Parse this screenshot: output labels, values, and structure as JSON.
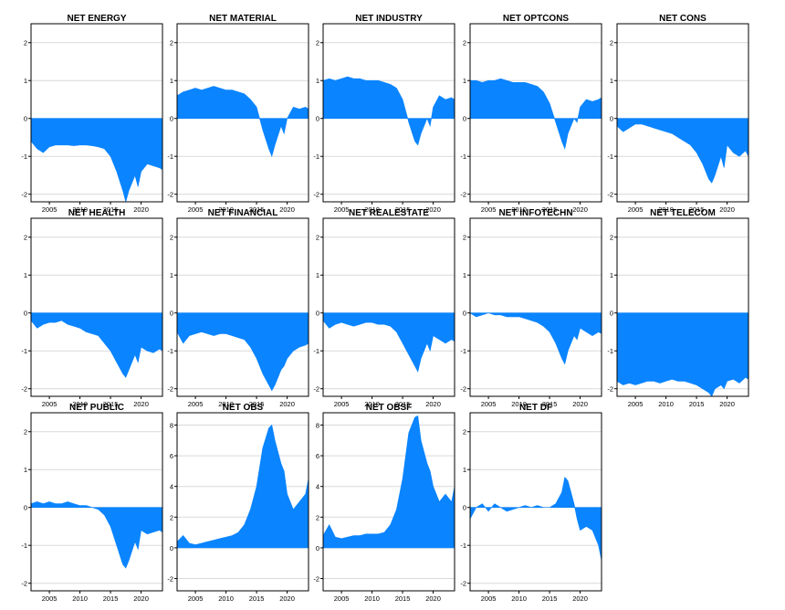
{
  "style": {
    "fill_color": "#0a84ff",
    "grid_color": "#d9d9d9",
    "frame_color": "#000000"
  },
  "chart_data": [
    {
      "type": "area",
      "title": "NET ENERGY",
      "x": [
        2002,
        2003,
        2004,
        2005,
        2006,
        2007,
        2008,
        2009,
        2010,
        2011,
        2012,
        2013,
        2014,
        2015,
        2016,
        2017,
        2017.5,
        2018,
        2019,
        2019.5,
        2020,
        2021,
        2022,
        2023,
        2023.5
      ],
      "y": [
        -0.6,
        -0.8,
        -0.9,
        -0.75,
        -0.7,
        -0.7,
        -0.7,
        -0.72,
        -0.7,
        -0.7,
        -0.72,
        -0.75,
        -0.8,
        -1.0,
        -1.4,
        -1.9,
        -2.2,
        -1.9,
        -1.5,
        -1.8,
        -1.4,
        -1.2,
        -1.25,
        -1.3,
        -1.35
      ],
      "xticks": [
        "2005",
        "2010",
        "2015",
        "2020"
      ],
      "xtick_values": [
        2005,
        2010,
        2015,
        2020
      ],
      "yticks": [
        "-2",
        "-1",
        "0",
        "1",
        "2"
      ],
      "ytick_values": [
        -2,
        -1,
        0,
        1,
        2
      ],
      "xlim": [
        2002,
        2023.5
      ],
      "ylim": [
        -2.2,
        2.5
      ],
      "grid": true
    },
    {
      "type": "area",
      "title": "NET MATERIAL",
      "x": [
        2002,
        2003,
        2004,
        2005,
        2006,
        2007,
        2008,
        2009,
        2010,
        2011,
        2012,
        2013,
        2014,
        2015,
        2016,
        2017,
        2017.5,
        2018,
        2019,
        2019.5,
        2020,
        2021,
        2022,
        2023,
        2023.5
      ],
      "y": [
        0.6,
        0.7,
        0.75,
        0.8,
        0.75,
        0.8,
        0.85,
        0.8,
        0.75,
        0.75,
        0.7,
        0.65,
        0.5,
        0.3,
        -0.3,
        -0.8,
        -1.0,
        -0.7,
        -0.2,
        -0.4,
        0.0,
        0.3,
        0.25,
        0.3,
        0.25
      ],
      "xticks": [
        "2005",
        "2010",
        "2015",
        "2020"
      ],
      "xtick_values": [
        2005,
        2010,
        2015,
        2020
      ],
      "yticks": [
        "-2",
        "-1",
        "0",
        "1",
        "2"
      ],
      "ytick_values": [
        -2,
        -1,
        0,
        1,
        2
      ],
      "xlim": [
        2002,
        2023.5
      ],
      "ylim": [
        -2.2,
        2.5
      ],
      "grid": true
    },
    {
      "type": "area",
      "title": "NET INDUSTRY",
      "x": [
        2002,
        2003,
        2004,
        2005,
        2006,
        2007,
        2008,
        2009,
        2010,
        2011,
        2012,
        2013,
        2014,
        2015,
        2016,
        2017,
        2017.5,
        2018,
        2019,
        2019.5,
        2020,
        2021,
        2022,
        2023,
        2023.5
      ],
      "y": [
        1.0,
        1.05,
        1.0,
        1.05,
        1.1,
        1.05,
        1.05,
        1.0,
        1.0,
        1.0,
        0.95,
        0.9,
        0.8,
        0.5,
        -0.1,
        -0.6,
        -0.7,
        -0.4,
        0.0,
        -0.2,
        0.3,
        0.6,
        0.5,
        0.55,
        0.5
      ],
      "xticks": [
        "2005",
        "2010",
        "2015",
        "2020"
      ],
      "xtick_values": [
        2005,
        2010,
        2015,
        2020
      ],
      "yticks": [
        "-2",
        "-1",
        "0",
        "1",
        "2"
      ],
      "ytick_values": [
        -2,
        -1,
        0,
        1,
        2
      ],
      "xlim": [
        2002,
        2023.5
      ],
      "ylim": [
        -2.2,
        2.5
      ],
      "grid": true
    },
    {
      "type": "area",
      "title": "NET OPTCONS",
      "x": [
        2002,
        2003,
        2004,
        2005,
        2006,
        2007,
        2008,
        2009,
        2010,
        2011,
        2012,
        2013,
        2014,
        2015,
        2016,
        2017,
        2017.5,
        2018,
        2019,
        2019.5,
        2020,
        2021,
        2022,
        2023,
        2023.5
      ],
      "y": [
        1.0,
        1.0,
        0.95,
        1.0,
        1.0,
        1.05,
        1.0,
        0.95,
        0.95,
        0.95,
        0.9,
        0.85,
        0.7,
        0.4,
        -0.1,
        -0.6,
        -0.8,
        -0.4,
        0.0,
        -0.1,
        0.3,
        0.5,
        0.45,
        0.5,
        0.55
      ],
      "xticks": [
        "2005",
        "2010",
        "2015",
        "2020"
      ],
      "xtick_values": [
        2005,
        2010,
        2015,
        2020
      ],
      "yticks": [
        "-2",
        "-1",
        "0",
        "1",
        "2"
      ],
      "ytick_values": [
        -2,
        -1,
        0,
        1,
        2
      ],
      "xlim": [
        2002,
        2023.5
      ],
      "ylim": [
        -2.2,
        2.5
      ],
      "grid": true
    },
    {
      "type": "area",
      "title": "NET CONS",
      "x": [
        2002,
        2003,
        2004,
        2005,
        2006,
        2007,
        2008,
        2009,
        2010,
        2011,
        2012,
        2013,
        2014,
        2015,
        2016,
        2017,
        2017.5,
        2018,
        2019,
        2019.5,
        2020,
        2021,
        2022,
        2023,
        2023.5
      ],
      "y": [
        -0.2,
        -0.35,
        -0.25,
        -0.15,
        -0.15,
        -0.2,
        -0.25,
        -0.3,
        -0.35,
        -0.4,
        -0.5,
        -0.6,
        -0.7,
        -0.9,
        -1.2,
        -1.6,
        -1.7,
        -1.5,
        -1.0,
        -1.3,
        -0.7,
        -0.9,
        -1.0,
        -0.85,
        -1.0
      ],
      "xticks": [
        "2005",
        "2010",
        "2015",
        "2020"
      ],
      "xtick_values": [
        2005,
        2010,
        2015,
        2020
      ],
      "yticks": [
        "-2",
        "-1",
        "0",
        "1",
        "2"
      ],
      "ytick_values": [
        -2,
        -1,
        0,
        1,
        2
      ],
      "xlim": [
        2002,
        2023.5
      ],
      "ylim": [
        -2.2,
        2.5
      ],
      "grid": true
    },
    {
      "type": "area",
      "title": "NET HEALTH",
      "x": [
        2002,
        2003,
        2004,
        2005,
        2006,
        2007,
        2008,
        2009,
        2010,
        2011,
        2012,
        2013,
        2014,
        2015,
        2016,
        2017,
        2017.5,
        2018,
        2019,
        2019.5,
        2020,
        2021,
        2022,
        2023,
        2023.5
      ],
      "y": [
        -0.2,
        -0.4,
        -0.3,
        -0.25,
        -0.25,
        -0.2,
        -0.3,
        -0.35,
        -0.4,
        -0.5,
        -0.55,
        -0.6,
        -0.8,
        -1.0,
        -1.3,
        -1.6,
        -1.7,
        -1.5,
        -1.1,
        -1.3,
        -0.9,
        -1.0,
        -1.05,
        -0.95,
        -1.0
      ],
      "xticks": [
        "2005",
        "2010",
        "2015",
        "2020"
      ],
      "xtick_values": [
        2005,
        2010,
        2015,
        2020
      ],
      "yticks": [
        "-2",
        "-1",
        "0",
        "1",
        "2"
      ],
      "ytick_values": [
        -2,
        -1,
        0,
        1,
        2
      ],
      "xlim": [
        2002,
        2023.5
      ],
      "ylim": [
        -2.2,
        2.5
      ],
      "grid": true
    },
    {
      "type": "area",
      "title": "NET FINANCIAL",
      "x": [
        2002,
        2003,
        2004,
        2005,
        2006,
        2007,
        2008,
        2009,
        2010,
        2011,
        2012,
        2013,
        2014,
        2015,
        2016,
        2017,
        2017.5,
        2018,
        2019,
        2019.5,
        2020,
        2021,
        2022,
        2023,
        2023.5
      ],
      "y": [
        -0.5,
        -0.8,
        -0.6,
        -0.55,
        -0.5,
        -0.55,
        -0.6,
        -0.55,
        -0.55,
        -0.6,
        -0.65,
        -0.7,
        -0.9,
        -1.2,
        -1.6,
        -1.9,
        -2.05,
        -1.9,
        -1.5,
        -1.4,
        -1.2,
        -1.0,
        -0.9,
        -0.85,
        -0.8
      ],
      "xticks": [
        "2005",
        "2010",
        "2015",
        "2020"
      ],
      "xtick_values": [
        2005,
        2010,
        2015,
        2020
      ],
      "yticks": [
        "-2",
        "-1",
        "0",
        "1",
        "2"
      ],
      "ytick_values": [
        -2,
        -1,
        0,
        1,
        2
      ],
      "xlim": [
        2002,
        2023.5
      ],
      "ylim": [
        -2.2,
        2.5
      ],
      "grid": true
    },
    {
      "type": "area",
      "title": "NET REALESTATE",
      "x": [
        2002,
        2003,
        2004,
        2005,
        2006,
        2007,
        2008,
        2009,
        2010,
        2011,
        2012,
        2013,
        2014,
        2015,
        2016,
        2017,
        2017.5,
        2018,
        2019,
        2019.5,
        2020,
        2021,
        2022,
        2023,
        2023.5
      ],
      "y": [
        -0.2,
        -0.4,
        -0.3,
        -0.25,
        -0.3,
        -0.35,
        -0.3,
        -0.25,
        -0.25,
        -0.3,
        -0.3,
        -0.35,
        -0.5,
        -0.8,
        -1.1,
        -1.4,
        -1.55,
        -1.2,
        -0.8,
        -1.0,
        -0.6,
        -0.7,
        -0.8,
        -0.7,
        -0.75
      ],
      "xticks": [
        "2005",
        "2010",
        "2015",
        "2020"
      ],
      "xtick_values": [
        2005,
        2010,
        2015,
        2020
      ],
      "yticks": [
        "-2",
        "-1",
        "0",
        "1",
        "2"
      ],
      "ytick_values": [
        -2,
        -1,
        0,
        1,
        2
      ],
      "xlim": [
        2002,
        2023.5
      ],
      "ylim": [
        -2.2,
        2.5
      ],
      "grid": true
    },
    {
      "type": "area",
      "title": "NET INFOTECHN",
      "x": [
        2002,
        2003,
        2004,
        2005,
        2006,
        2007,
        2008,
        2009,
        2010,
        2011,
        2012,
        2013,
        2014,
        2015,
        2016,
        2017,
        2017.5,
        2018,
        2019,
        2019.5,
        2020,
        2021,
        2022,
        2023,
        2023.5
      ],
      "y": [
        0.0,
        -0.1,
        -0.05,
        0.0,
        -0.05,
        -0.05,
        -0.1,
        -0.1,
        -0.1,
        -0.15,
        -0.2,
        -0.25,
        -0.35,
        -0.5,
        -0.8,
        -1.2,
        -1.35,
        -1.0,
        -0.6,
        -0.7,
        -0.4,
        -0.5,
        -0.6,
        -0.5,
        -0.55
      ],
      "xticks": [
        "2005",
        "2010",
        "2015",
        "2020"
      ],
      "xtick_values": [
        2005,
        2010,
        2015,
        2020
      ],
      "yticks": [
        "-2",
        "-1",
        "0",
        "1",
        "2"
      ],
      "ytick_values": [
        -2,
        -1,
        0,
        1,
        2
      ],
      "xlim": [
        2002,
        2023.5
      ],
      "ylim": [
        -2.2,
        2.5
      ],
      "grid": true
    },
    {
      "type": "area",
      "title": "NET TELECOM",
      "x": [
        2002,
        2003,
        2004,
        2005,
        2006,
        2007,
        2008,
        2009,
        2010,
        2011,
        2012,
        2013,
        2014,
        2015,
        2016,
        2017,
        2017.5,
        2018,
        2019,
        2019.5,
        2020,
        2021,
        2022,
        2023,
        2023.5
      ],
      "y": [
        -1.8,
        -1.9,
        -1.85,
        -1.9,
        -1.85,
        -1.8,
        -1.8,
        -1.85,
        -1.8,
        -1.75,
        -1.8,
        -1.8,
        -1.85,
        -1.9,
        -2.0,
        -2.1,
        -2.2,
        -2.0,
        -1.9,
        -2.0,
        -1.8,
        -1.75,
        -1.85,
        -1.7,
        -1.75
      ],
      "xticks": [
        "2005",
        "2010",
        "2015",
        "2020"
      ],
      "xtick_values": [
        2005,
        2010,
        2015,
        2020
      ],
      "yticks": [
        "-2",
        "-1",
        "0",
        "1",
        "2"
      ],
      "ytick_values": [
        -2,
        -1,
        0,
        1,
        2
      ],
      "xlim": [
        2002,
        2023.5
      ],
      "ylim": [
        -2.2,
        2.5
      ],
      "grid": true
    },
    {
      "type": "area",
      "title": "NET PUBLIC",
      "x": [
        2002,
        2003,
        2004,
        2005,
        2006,
        2007,
        2008,
        2009,
        2010,
        2011,
        2012,
        2013,
        2014,
        2015,
        2016,
        2017,
        2017.5,
        2018,
        2019,
        2019.5,
        2020,
        2021,
        2022,
        2023,
        2023.5
      ],
      "y": [
        0.1,
        0.15,
        0.1,
        0.15,
        0.1,
        0.1,
        0.15,
        0.1,
        0.05,
        0.05,
        0.0,
        -0.05,
        -0.2,
        -0.5,
        -1.0,
        -1.5,
        -1.6,
        -1.4,
        -0.9,
        -1.1,
        -0.6,
        -0.7,
        -0.65,
        -0.6,
        -0.65
      ],
      "xticks": [
        "2005",
        "2010",
        "2015",
        "2020"
      ],
      "xtick_values": [
        2005,
        2010,
        2015,
        2020
      ],
      "yticks": [
        "-2",
        "-1",
        "0",
        "1",
        "2"
      ],
      "ytick_values": [
        -2,
        -1,
        0,
        1,
        2
      ],
      "xlim": [
        2002,
        2023.5
      ],
      "ylim": [
        -2.2,
        2.5
      ],
      "grid": true
    },
    {
      "type": "area",
      "title": "NET OBS",
      "x": [
        2002,
        2003,
        2004,
        2005,
        2006,
        2007,
        2008,
        2009,
        2010,
        2011,
        2012,
        2013,
        2014,
        2015,
        2016,
        2017,
        2017.5,
        2018,
        2019,
        2019.5,
        2020,
        2021,
        2022,
        2023,
        2023.5
      ],
      "y": [
        0.4,
        0.8,
        0.3,
        0.2,
        0.3,
        0.4,
        0.5,
        0.6,
        0.7,
        0.8,
        1.0,
        1.5,
        2.5,
        4.0,
        6.5,
        7.8,
        8.0,
        7.0,
        5.5,
        5.0,
        3.5,
        2.5,
        3.0,
        3.5,
        4.5
      ],
      "xticks": [
        "2005",
        "2010",
        "2015",
        "2020"
      ],
      "xtick_values": [
        2005,
        2010,
        2015,
        2020
      ],
      "yticks": [
        "-2",
        "0",
        "2",
        "4",
        "6",
        "8"
      ],
      "ytick_values": [
        -2,
        0,
        2,
        4,
        6,
        8
      ],
      "xlim": [
        2002,
        2023.5
      ],
      "ylim": [
        -2.8,
        8.8
      ],
      "grid": true
    },
    {
      "type": "area",
      "title": "NET OBSF",
      "x": [
        2002,
        2003,
        2004,
        2005,
        2006,
        2007,
        2008,
        2009,
        2010,
        2011,
        2012,
        2013,
        2014,
        2015,
        2016,
        2017,
        2017.5,
        2018,
        2019,
        2019.5,
        2020,
        2021,
        2022,
        2023,
        2023.5
      ],
      "y": [
        0.8,
        1.5,
        0.7,
        0.6,
        0.7,
        0.8,
        0.8,
        0.9,
        0.9,
        0.9,
        1.0,
        1.5,
        2.5,
        4.5,
        7.5,
        8.5,
        8.6,
        7.0,
        5.5,
        5.0,
        4.0,
        3.0,
        3.5,
        3.0,
        4.0
      ],
      "xticks": [
        "2005",
        "2010",
        "2015",
        "2020"
      ],
      "xtick_values": [
        2005,
        2010,
        2015,
        2020
      ],
      "yticks": [
        "-2",
        "0",
        "2",
        "4",
        "6",
        "8"
      ],
      "ytick_values": [
        -2,
        0,
        2,
        4,
        6,
        8
      ],
      "xlim": [
        2002,
        2023.5
      ],
      "ylim": [
        -2.8,
        8.8
      ],
      "grid": true
    },
    {
      "type": "area",
      "title": "NET DF",
      "x": [
        2002,
        2003,
        2004,
        2005,
        2006,
        2007,
        2008,
        2009,
        2010,
        2011,
        2012,
        2013,
        2014,
        2015,
        2016,
        2017,
        2017.5,
        2018,
        2019,
        2019.5,
        2020,
        2021,
        2022,
        2023,
        2023.5
      ],
      "y": [
        -0.3,
        0.0,
        0.1,
        -0.1,
        0.1,
        0.0,
        -0.1,
        -0.05,
        0.0,
        0.05,
        0.0,
        0.05,
        0.0,
        0.0,
        0.1,
        0.4,
        0.8,
        0.7,
        0.1,
        -0.3,
        -0.6,
        -0.5,
        -0.6,
        -1.0,
        -1.4
      ],
      "xticks": [
        "2005",
        "2010",
        "2015",
        "2020"
      ],
      "xtick_values": [
        2005,
        2010,
        2015,
        2020
      ],
      "yticks": [
        "-2",
        "-1",
        "0",
        "1",
        "2"
      ],
      "ytick_values": [
        -2,
        -1,
        0,
        1,
        2
      ],
      "xlim": [
        2002,
        2023.5
      ],
      "ylim": [
        -2.2,
        2.5
      ],
      "grid": true
    }
  ]
}
